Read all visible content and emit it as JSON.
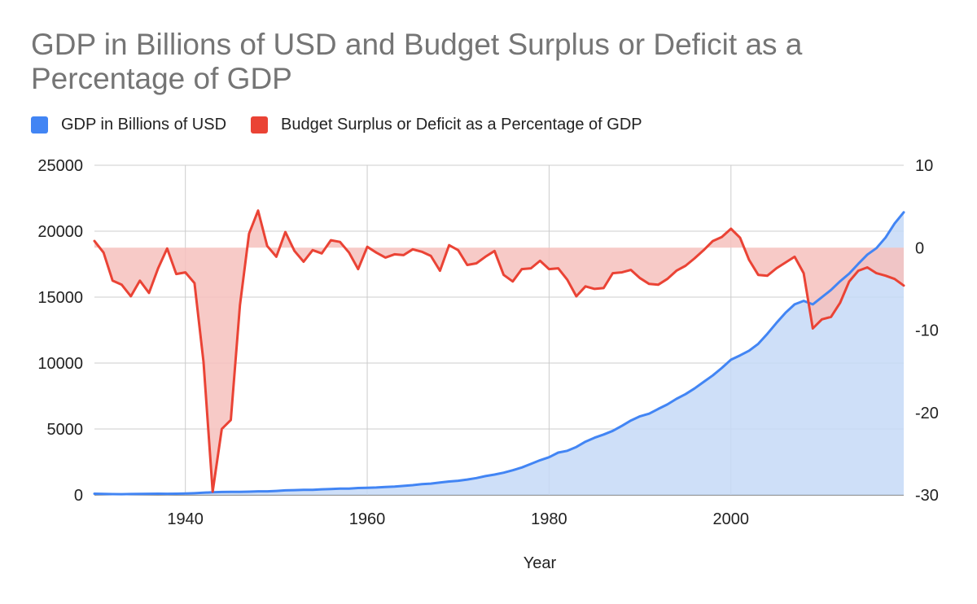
{
  "chart_data": {
    "type": "area",
    "title": "GDP in Billions of USD and Budget Surplus or Deficit as a Percentage of GDP",
    "xlabel": "Year",
    "xlim": [
      1930,
      2019
    ],
    "x_ticks": [
      1940,
      1960,
      1980,
      2000
    ],
    "left_axis": {
      "ylim": [
        0,
        25000
      ],
      "ticks": [
        0,
        5000,
        10000,
        15000,
        20000,
        25000
      ]
    },
    "right_axis": {
      "ylim": [
        -30,
        10
      ],
      "ticks": [
        -30,
        -20,
        -10,
        0,
        10
      ]
    },
    "grid": true,
    "legend_position": "top-left",
    "series": [
      {
        "name": "GDP in Billions of USD",
        "axis": "left",
        "color": "#4285f4",
        "fill": "#c6d9f7",
        "x": [
          1930,
          1931,
          1932,
          1933,
          1934,
          1935,
          1936,
          1937,
          1938,
          1939,
          1940,
          1941,
          1942,
          1943,
          1944,
          1945,
          1946,
          1947,
          1948,
          1949,
          1950,
          1951,
          1952,
          1953,
          1954,
          1955,
          1956,
          1957,
          1958,
          1959,
          1960,
          1961,
          1962,
          1963,
          1964,
          1965,
          1966,
          1967,
          1968,
          1969,
          1970,
          1971,
          1972,
          1973,
          1974,
          1975,
          1976,
          1977,
          1978,
          1979,
          1980,
          1981,
          1982,
          1983,
          1984,
          1985,
          1986,
          1987,
          1988,
          1989,
          1990,
          1991,
          1992,
          1993,
          1994,
          1995,
          1996,
          1997,
          1998,
          1999,
          2000,
          2001,
          2002,
          2003,
          2004,
          2005,
          2006,
          2007,
          2008,
          2009,
          2010,
          2011,
          2012,
          2013,
          2014,
          2015,
          2016,
          2017,
          2018,
          2019
        ],
        "values": [
          92,
          77,
          60,
          57,
          66,
          73,
          84,
          93,
          87,
          93,
          103,
          129,
          166,
          203,
          225,
          228,
          228,
          249,
          274,
          273,
          300,
          347,
          367,
          389,
          391,
          425,
          449,
          474,
          482,
          522,
          543,
          563,
          605,
          638,
          685,
          743,
          815,
          861,
          943,
          1019,
          1073,
          1165,
          1279,
          1425,
          1545,
          1684,
          1873,
          2082,
          2352,
          2627,
          2857,
          3207,
          3343,
          3634,
          4037,
          4339,
          4579,
          4855,
          5236,
          5641,
          5963,
          6158,
          6520,
          6859,
          7287,
          7639,
          8073,
          8577,
          9062,
          9631,
          10252,
          10582,
          10936,
          11458,
          12214,
          13037,
          13815,
          14452,
          14713,
          14449,
          14992,
          15543,
          16197,
          16785,
          17527,
          18225,
          18715,
          19519,
          20580,
          21433
        ]
      },
      {
        "name": "Budget Surplus or Deficit as a Percentage of GDP",
        "axis": "right",
        "color": "#ea4335",
        "fill": "#f6c1bd",
        "x": [
          1930,
          1931,
          1932,
          1933,
          1934,
          1935,
          1936,
          1937,
          1938,
          1939,
          1940,
          1941,
          1942,
          1943,
          1944,
          1945,
          1946,
          1947,
          1948,
          1949,
          1950,
          1951,
          1952,
          1953,
          1954,
          1955,
          1956,
          1957,
          1958,
          1959,
          1960,
          1961,
          1962,
          1963,
          1964,
          1965,
          1966,
          1967,
          1968,
          1969,
          1970,
          1971,
          1972,
          1973,
          1974,
          1975,
          1976,
          1977,
          1978,
          1979,
          1980,
          1981,
          1982,
          1983,
          1984,
          1985,
          1986,
          1987,
          1988,
          1989,
          1990,
          1991,
          1992,
          1993,
          1994,
          1995,
          1996,
          1997,
          1998,
          1999,
          2000,
          2001,
          2002,
          2003,
          2004,
          2005,
          2006,
          2007,
          2008,
          2009,
          2010,
          2011,
          2012,
          2013,
          2014,
          2015,
          2016,
          2017,
          2018,
          2019
        ],
        "values": [
          0.8,
          -0.6,
          -4.0,
          -4.5,
          -5.9,
          -4.0,
          -5.5,
          -2.5,
          -0.1,
          -3.2,
          -3.0,
          -4.3,
          -13.9,
          -29.6,
          -22.0,
          -20.9,
          -7.0,
          1.7,
          4.5,
          0.2,
          -1.1,
          1.9,
          -0.4,
          -1.7,
          -0.3,
          -0.7,
          0.9,
          0.7,
          -0.6,
          -2.6,
          0.1,
          -0.6,
          -1.2,
          -0.8,
          -0.9,
          -0.2,
          -0.5,
          -1.0,
          -2.8,
          0.3,
          -0.3,
          -2.1,
          -1.9,
          -1.1,
          -0.4,
          -3.3,
          -4.1,
          -2.6,
          -2.5,
          -1.6,
          -2.6,
          -2.5,
          -3.9,
          -5.9,
          -4.7,
          -5.0,
          -4.9,
          -3.1,
          -3.0,
          -2.7,
          -3.7,
          -4.4,
          -4.5,
          -3.8,
          -2.8,
          -2.2,
          -1.3,
          -0.3,
          0.8,
          1.3,
          2.3,
          1.2,
          -1.5,
          -3.3,
          -3.4,
          -2.5,
          -1.8,
          -1.1,
          -3.1,
          -9.8,
          -8.7,
          -8.4,
          -6.7,
          -4.1,
          -2.8,
          -2.4,
          -3.1,
          -3.4,
          -3.8,
          -4.6
        ]
      }
    ]
  }
}
